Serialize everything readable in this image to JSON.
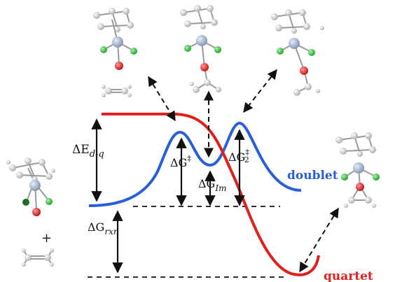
{
  "labels": {
    "delta": "ΔE",
    "dq_sub": "d-q",
    "g_ts1": "ΔG",
    "ts1_sup": "‡",
    "g_im": "ΔG",
    "im_sub": "Im",
    "g_ts2": "ΔG",
    "ts2_sup": "‡",
    "ts2_sub": "2",
    "g_rxn": "ΔG",
    "rxn_sub": "rxn",
    "plus": "+"
  },
  "states": {
    "doublet": "doublet",
    "quartet": "quartet"
  },
  "colors": {
    "doublet": "#2a5fd6",
    "quartet": "#e0201c",
    "arrows": "#111111",
    "atom_carbon": "#d8d8d8",
    "atom_metal": "#9fb2cc",
    "atom_chlorine": "#33c23a",
    "atom_oxygen": "#e01a1a"
  }
}
